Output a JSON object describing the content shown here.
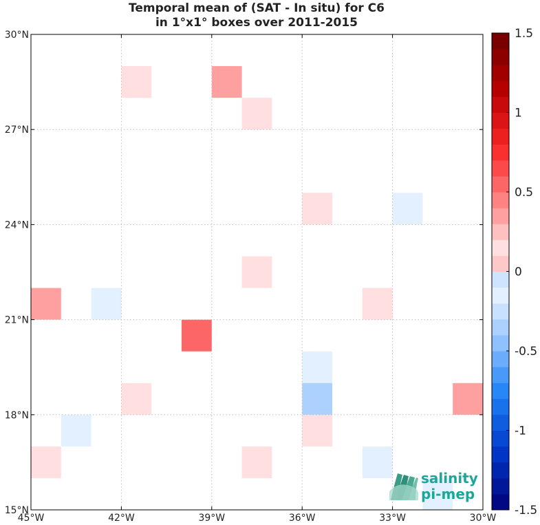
{
  "title": {
    "line1": "Temporal mean of (SAT - In situ) for C6",
    "line2": "in 1°x1° boxes over 2011-2015"
  },
  "chart_data": {
    "type": "heatmap",
    "xlim": [
      -45,
      -30
    ],
    "ylim": [
      15,
      30
    ],
    "x_ticks": [
      {
        "value": -45,
        "label": "45°W"
      },
      {
        "value": -42,
        "label": "42°W"
      },
      {
        "value": -39,
        "label": "39°W"
      },
      {
        "value": -36,
        "label": "36°W"
      },
      {
        "value": -33,
        "label": "33°W"
      },
      {
        "value": -30,
        "label": "30°W"
      }
    ],
    "y_ticks": [
      {
        "value": 15,
        "label": "15°N"
      },
      {
        "value": 18,
        "label": "18°N"
      },
      {
        "value": 21,
        "label": "21°N"
      },
      {
        "value": 24,
        "label": "24°N"
      },
      {
        "value": 27,
        "label": "27°N"
      },
      {
        "value": 30,
        "label": "30°N"
      }
    ],
    "grid": true,
    "cells": [
      {
        "lon": -42,
        "lat": 28,
        "value": 0.15
      },
      {
        "lon": -39,
        "lat": 28,
        "value": 0.35
      },
      {
        "lon": -38,
        "lat": 27,
        "value": 0.15
      },
      {
        "lon": -36,
        "lat": 24,
        "value": 0.15
      },
      {
        "lon": -33,
        "lat": 24,
        "value": -0.15
      },
      {
        "lon": -38,
        "lat": 22,
        "value": 0.15
      },
      {
        "lon": -45,
        "lat": 21,
        "value": 0.3
      },
      {
        "lon": -43,
        "lat": 21,
        "value": -0.15
      },
      {
        "lon": -34,
        "lat": 21,
        "value": 0.15
      },
      {
        "lon": -40,
        "lat": 20,
        "value": 0.5
      },
      {
        "lon": -36,
        "lat": 19,
        "value": -0.15
      },
      {
        "lon": -36,
        "lat": 18,
        "value": -0.3
      },
      {
        "lon": -42,
        "lat": 18,
        "value": 0.15
      },
      {
        "lon": -31,
        "lat": 18,
        "value": 0.3
      },
      {
        "lon": -44,
        "lat": 17,
        "value": -0.15
      },
      {
        "lon": -36,
        "lat": 17,
        "value": 0.15
      },
      {
        "lon": -45,
        "lat": 16,
        "value": 0.15
      },
      {
        "lon": -38,
        "lat": 16,
        "value": 0.15
      },
      {
        "lon": -34,
        "lat": 16,
        "value": -0.15
      },
      {
        "lon": -32,
        "lat": 15,
        "value": -0.15
      }
    ],
    "colorbar": {
      "range": [
        -1.5,
        1.5
      ],
      "levels": 30,
      "ticks": [
        {
          "value": 1.5,
          "label": "1.5"
        },
        {
          "value": 1,
          "label": "1"
        },
        {
          "value": 0.5,
          "label": "0.5"
        },
        {
          "value": 0,
          "label": "0"
        },
        {
          "value": -0.5,
          "label": "-0.5"
        },
        {
          "value": -1,
          "label": "-1"
        },
        {
          "value": -1.5,
          "label": "-1.5"
        }
      ],
      "colormap": "blue-white-red"
    }
  },
  "logo": {
    "line1": "salinity",
    "line2": "pi-mep",
    "colors": {
      "text": "#1aa79a",
      "waves": "#2f8f7a"
    }
  }
}
